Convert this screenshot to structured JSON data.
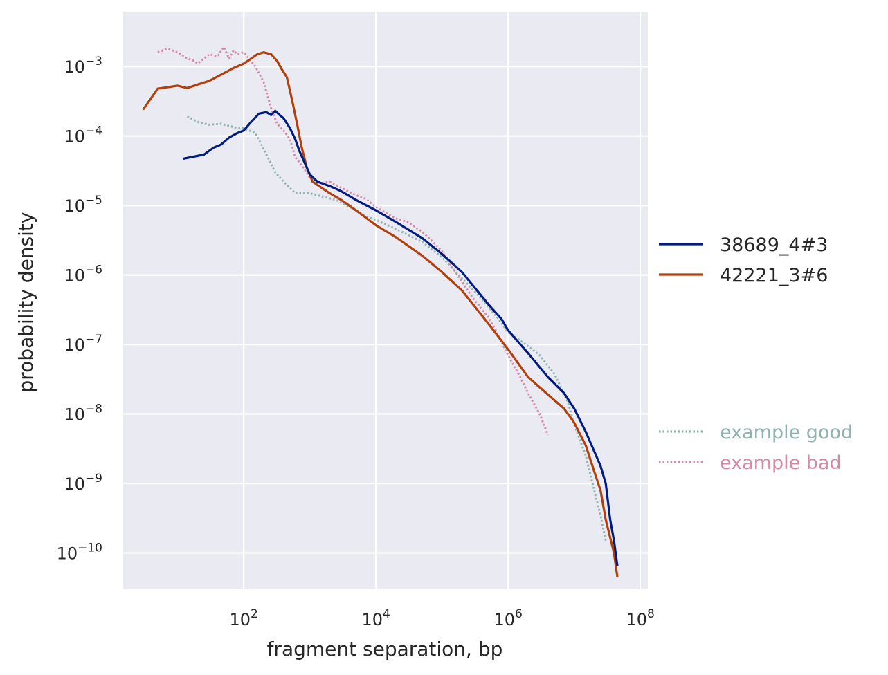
{
  "chart_data": {
    "type": "line",
    "title": "",
    "xlabel": "fragment separation, bp",
    "ylabel": "probability density",
    "xscale": "log",
    "yscale": "log",
    "xlim": [
      1.5,
      130000000
    ],
    "ylim": [
      3e-11,
      0.006
    ],
    "xticks": [
      {
        "value": 100,
        "base": "10",
        "exp": "2"
      },
      {
        "value": 10000,
        "base": "10",
        "exp": "4"
      },
      {
        "value": 1000000,
        "base": "10",
        "exp": "6"
      },
      {
        "value": 100000000,
        "base": "10",
        "exp": "8"
      }
    ],
    "yticks": [
      {
        "value": 0.001,
        "base": "10",
        "exp": "−3"
      },
      {
        "value": 0.0001,
        "base": "10",
        "exp": "−4"
      },
      {
        "value": 1e-05,
        "base": "10",
        "exp": "−5"
      },
      {
        "value": 1e-06,
        "base": "10",
        "exp": "−6"
      },
      {
        "value": 1e-07,
        "base": "10",
        "exp": "−7"
      },
      {
        "value": 1e-08,
        "base": "10",
        "exp": "−8"
      },
      {
        "value": 1e-09,
        "base": "10",
        "exp": "−9"
      },
      {
        "value": 1e-10,
        "base": "10",
        "exp": "−10"
      }
    ],
    "grid": true,
    "legend_position": "right",
    "series": [
      {
        "name": "38689_4#3",
        "color": "#001c7f",
        "style": "solid",
        "points": [
          [
            12,
            4.7e-05
          ],
          [
            25,
            5.4e-05
          ],
          [
            35,
            6.8e-05
          ],
          [
            45,
            7.5e-05
          ],
          [
            60,
            9.5e-05
          ],
          [
            80,
            0.00011
          ],
          [
            100,
            0.00012
          ],
          [
            130,
            0.00016
          ],
          [
            170,
            0.00021
          ],
          [
            220,
            0.00022
          ],
          [
            260,
            0.0002
          ],
          [
            300,
            0.00023
          ],
          [
            350,
            0.0002
          ],
          [
            400,
            0.00018
          ],
          [
            500,
            0.00013
          ],
          [
            600,
            9e-05
          ],
          [
            700,
            6e-05
          ],
          [
            800,
            4.5e-05
          ],
          [
            1000,
            2.8e-05
          ],
          [
            1300,
            2.2e-05
          ],
          [
            2000,
            1.9e-05
          ],
          [
            3000,
            1.6e-05
          ],
          [
            5000,
            1.2e-05
          ],
          [
            10000,
            8.5e-06
          ],
          [
            20000,
            5.8e-06
          ],
          [
            50000,
            3.4e-06
          ],
          [
            100000,
            2e-06
          ],
          [
            200000,
            1.1e-06
          ],
          [
            500000,
            3.8e-07
          ],
          [
            800000,
            2.3e-07
          ],
          [
            1000000,
            1.6e-07
          ],
          [
            2000000,
            7.5e-08
          ],
          [
            4000000,
            3.4e-08
          ],
          [
            7000000,
            2e-08
          ],
          [
            10000000,
            1.2e-08
          ],
          [
            15000000,
            5.5e-09
          ],
          [
            25000000,
            1.8e-09
          ],
          [
            30000000,
            1e-09
          ],
          [
            35000000,
            3e-10
          ],
          [
            40000000,
            1.5e-10
          ],
          [
            45000000,
            6.5e-11
          ]
        ]
      },
      {
        "name": "42221_3#6",
        "color": "#b1400d",
        "style": "solid",
        "points": [
          [
            3,
            0.00024
          ],
          [
            5,
            0.00048
          ],
          [
            10,
            0.00053
          ],
          [
            14,
            0.00049
          ],
          [
            20,
            0.00055
          ],
          [
            30,
            0.00062
          ],
          [
            50,
            0.0008
          ],
          [
            70,
            0.00095
          ],
          [
            100,
            0.0011
          ],
          [
            130,
            0.0013
          ],
          [
            160,
            0.0015
          ],
          [
            200,
            0.0016
          ],
          [
            260,
            0.0015
          ],
          [
            320,
            0.0012
          ],
          [
            380,
            0.0009
          ],
          [
            450,
            0.0007
          ],
          [
            550,
            0.0003
          ],
          [
            650,
            0.00014
          ],
          [
            750,
            7e-05
          ],
          [
            900,
            3.5e-05
          ],
          [
            1100,
            2.2e-05
          ],
          [
            1500,
            1.8e-05
          ],
          [
            2000,
            1.5e-05
          ],
          [
            3000,
            1.2e-05
          ],
          [
            5000,
            8.5e-06
          ],
          [
            10000,
            5.2e-06
          ],
          [
            20000,
            3.5e-06
          ],
          [
            50000,
            1.9e-06
          ],
          [
            100000,
            1.1e-06
          ],
          [
            200000,
            6e-07
          ],
          [
            500000,
            2e-07
          ],
          [
            1000000,
            8.5e-08
          ],
          [
            2000000,
            3.4e-08
          ],
          [
            4000000,
            1.9e-08
          ],
          [
            7000000,
            1.2e-08
          ],
          [
            10000000,
            7.5e-09
          ],
          [
            15000000,
            3.5e-09
          ],
          [
            20000000,
            1.5e-09
          ],
          [
            25000000,
            8e-10
          ],
          [
            30000000,
            3e-10
          ],
          [
            40000000,
            1e-10
          ],
          [
            45000000,
            4.5e-11
          ]
        ]
      },
      {
        "name": "example good",
        "color": "#8fb4b0",
        "style": "dotted",
        "points": [
          [
            14,
            0.00019
          ],
          [
            20,
            0.00016
          ],
          [
            30,
            0.000145
          ],
          [
            45,
            0.00015
          ],
          [
            60,
            0.00014
          ],
          [
            80,
            0.00013
          ],
          [
            100,
            0.00013
          ],
          [
            150,
            0.00011
          ],
          [
            200,
            6.5e-05
          ],
          [
            300,
            3e-05
          ],
          [
            400,
            2.2e-05
          ],
          [
            600,
            1.5e-05
          ],
          [
            1000,
            1.5e-05
          ],
          [
            1500,
            1.35e-05
          ],
          [
            2500,
            1.2e-05
          ],
          [
            4000,
            9.5e-06
          ],
          [
            7000,
            7e-06
          ],
          [
            10000,
            6.2e-06
          ],
          [
            20000,
            4.6e-06
          ],
          [
            50000,
            3e-06
          ],
          [
            100000,
            1.8e-06
          ],
          [
            200000,
            9e-07
          ],
          [
            400000,
            4.5e-07
          ],
          [
            700000,
            2.4e-07
          ],
          [
            1000000,
            1.5e-07
          ],
          [
            1500000,
            1.15e-07
          ],
          [
            2000000,
            9.5e-08
          ],
          [
            3000000,
            7e-08
          ],
          [
            5000000,
            3.8e-08
          ],
          [
            8000000,
            1.5e-08
          ],
          [
            10000000,
            7e-09
          ],
          [
            15000000,
            2.5e-09
          ],
          [
            20000000,
            8e-10
          ],
          [
            25000000,
            3.5e-10
          ],
          [
            30000000,
            1.5e-10
          ]
        ]
      },
      {
        "name": "example bad",
        "color": "#d689a3",
        "style": "dotted",
        "points": [
          [
            5,
            0.0016
          ],
          [
            7,
            0.0018
          ],
          [
            10,
            0.0016
          ],
          [
            14,
            0.0013
          ],
          [
            18,
            0.0012
          ],
          [
            20,
            0.0011
          ],
          [
            25,
            0.0013
          ],
          [
            30,
            0.0015
          ],
          [
            40,
            0.0014
          ],
          [
            50,
            0.0019
          ],
          [
            60,
            0.0013
          ],
          [
            70,
            0.0017
          ],
          [
            80,
            0.0015
          ],
          [
            100,
            0.0016
          ],
          [
            120,
            0.0013
          ],
          [
            150,
            0.001
          ],
          [
            200,
            0.0006
          ],
          [
            260,
            0.00025
          ],
          [
            320,
            0.00015
          ],
          [
            400,
            0.00012
          ],
          [
            500,
            9e-05
          ],
          [
            600,
            5e-05
          ],
          [
            800,
            3.5e-05
          ],
          [
            1000,
            2.5e-05
          ],
          [
            1500,
            2.1e-05
          ],
          [
            2000,
            2.2e-05
          ],
          [
            3000,
            1.8e-05
          ],
          [
            5000,
            1.4e-05
          ],
          [
            7000,
            1.25e-05
          ],
          [
            10000,
            9.5e-06
          ],
          [
            20000,
            6.5e-06
          ],
          [
            30000,
            5.8e-06
          ],
          [
            50000,
            4.2e-06
          ],
          [
            70000,
            3.1e-06
          ],
          [
            100000,
            2.2e-06
          ],
          [
            150000,
            1.2e-06
          ],
          [
            200000,
            8e-07
          ],
          [
            300000,
            4.5e-07
          ],
          [
            500000,
            2.5e-07
          ],
          [
            700000,
            1.4e-07
          ],
          [
            1000000,
            7e-08
          ],
          [
            1500000,
            3.5e-08
          ],
          [
            2000000,
            2e-08
          ],
          [
            3000000,
            1e-08
          ],
          [
            4000000,
            5e-09
          ]
        ]
      }
    ],
    "legend": {
      "primary": [
        {
          "label": "38689_4#3",
          "color": "#001c7f",
          "style": "solid"
        },
        {
          "label": "42221_3#6",
          "color": "#b1400d",
          "style": "solid"
        }
      ],
      "reference": [
        {
          "label": "example good",
          "color": "#8fb4b0",
          "style": "dotted"
        },
        {
          "label": "example bad",
          "color": "#d689a3",
          "style": "dotted"
        }
      ]
    }
  }
}
